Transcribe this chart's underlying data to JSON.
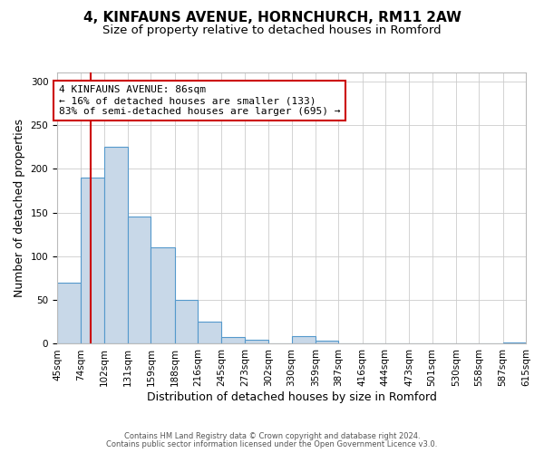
{
  "title": "4, KINFAUNS AVENUE, HORNCHURCH, RM11 2AW",
  "subtitle": "Size of property relative to detached houses in Romford",
  "xlabel": "Distribution of detached houses by size in Romford",
  "ylabel": "Number of detached properties",
  "bin_edges": [
    45,
    74,
    102,
    131,
    159,
    188,
    216,
    245,
    273,
    302,
    330,
    359,
    387,
    416,
    444,
    473,
    501,
    530,
    558,
    587,
    615
  ],
  "bar_heights": [
    70,
    190,
    225,
    145,
    110,
    50,
    25,
    8,
    5,
    0,
    9,
    4,
    0,
    0,
    0,
    0,
    0,
    0,
    0,
    2
  ],
  "bar_color": "#c8d8e8",
  "bar_edge_color": "#5599cc",
  "reference_line_x": 86,
  "reference_line_color": "#cc0000",
  "annotation_line1": "4 KINFAUNS AVENUE: 86sqm",
  "annotation_line2": "← 16% of detached houses are smaller (133)",
  "annotation_line3": "83% of semi-detached houses are larger (695) →",
  "ylim": [
    0,
    310
  ],
  "yticks": [
    0,
    50,
    100,
    150,
    200,
    250,
    300
  ],
  "background_color": "#ffffff",
  "footer_line1": "Contains HM Land Registry data © Crown copyright and database right 2024.",
  "footer_line2": "Contains public sector information licensed under the Open Government Licence v3.0.",
  "title_fontsize": 11,
  "subtitle_fontsize": 9.5,
  "tick_label_fontsize": 7.5,
  "xlabel_fontsize": 9,
  "ylabel_fontsize": 9,
  "annotation_fontsize": 8,
  "footer_fontsize": 6
}
